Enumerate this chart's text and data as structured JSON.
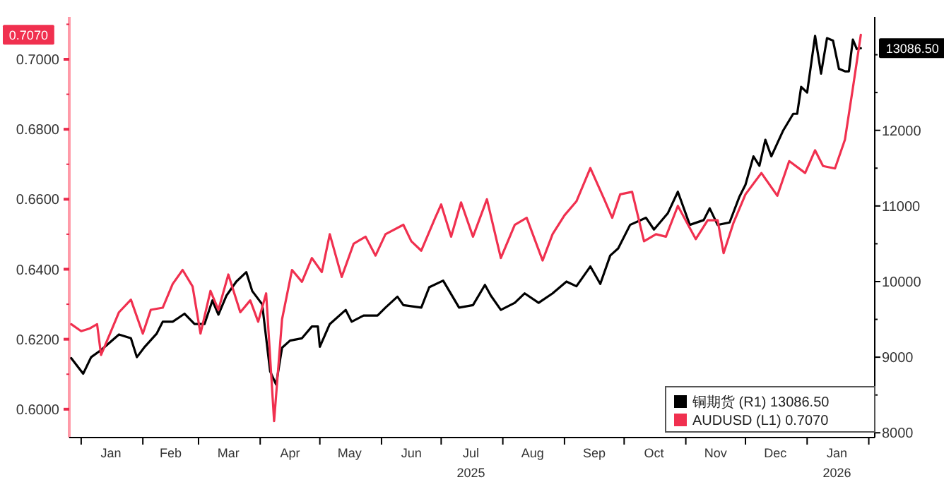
{
  "chart_data": {
    "type": "line",
    "xlim": [
      "2024-12-26",
      "2026-02-04"
    ],
    "ylim": [
      0.5919,
      0.7121
    ],
    "y2lim": [
      7937,
      13500
    ],
    "xticks": [
      {
        "value": "2025-01-01",
        "label": null
      },
      {
        "value": "2025-01-16",
        "label": "Jan"
      },
      {
        "value": "2025-02-01",
        "label": null
      },
      {
        "value": "2025-02-15",
        "label": "Feb"
      },
      {
        "value": "2025-03-01",
        "label": null
      },
      {
        "value": "2025-03-16",
        "label": "Mar"
      },
      {
        "value": "2025-04-01",
        "label": null
      },
      {
        "value": "2025-04-16",
        "label": "Apr"
      },
      {
        "value": "2025-05-01",
        "label": null
      },
      {
        "value": "2025-05-16",
        "label": "May"
      },
      {
        "value": "2025-06-01",
        "label": null
      },
      {
        "value": "2025-06-16",
        "label": "Jun"
      },
      {
        "value": "2025-07-01",
        "label": null
      },
      {
        "value": "2025-07-16",
        "label": "Jul\n2025"
      },
      {
        "value": "2025-08-01",
        "label": null
      },
      {
        "value": "2025-08-16",
        "label": "Aug"
      },
      {
        "value": "2025-09-01",
        "label": null
      },
      {
        "value": "2025-09-16",
        "label": "Sep"
      },
      {
        "value": "2025-10-01",
        "label": null
      },
      {
        "value": "2025-10-16",
        "label": "Oct"
      },
      {
        "value": "2025-11-01",
        "label": null
      },
      {
        "value": "2025-11-16",
        "label": "Nov"
      },
      {
        "value": "2025-12-01",
        "label": null
      },
      {
        "value": "2025-12-16",
        "label": "Dec"
      },
      {
        "value": "2026-01-01",
        "label": null
      },
      {
        "value": "2026-01-16",
        "label": "Jan\n2026"
      },
      {
        "value": "2026-02-01",
        "label": null
      }
    ],
    "yticks": [
      {
        "value": 0.6,
        "label": "0.6000"
      },
      {
        "value": 0.61,
        "label": null
      },
      {
        "value": 0.62,
        "label": "0.6200"
      },
      {
        "value": 0.63,
        "label": null
      },
      {
        "value": 0.64,
        "label": "0.6400"
      },
      {
        "value": 0.65,
        "label": null
      },
      {
        "value": 0.66,
        "label": "0.6600"
      },
      {
        "value": 0.67,
        "label": null
      },
      {
        "value": 0.68,
        "label": "0.6800"
      },
      {
        "value": 0.69,
        "label": null
      },
      {
        "value": 0.7,
        "label": "0.7000"
      },
      {
        "value": 0.71,
        "label": null
      }
    ],
    "y2ticks": [
      8000,
      {
        "value": 8500,
        "label": null
      },
      9000,
      {
        "value": 9500,
        "label": null
      },
      10000,
      {
        "value": 10500,
        "label": null
      },
      11000,
      {
        "value": 11500,
        "label": null
      },
      12000,
      {
        "value": 12500,
        "label": null
      },
      {
        "value": 13000,
        "label": null
      }
    ],
    "grid": false,
    "legend": "bottom right",
    "series": [
      {
        "name": "铜期货 (R1) 13086.50",
        "color": "#000000",
        "axis": "y2",
        "x": [
          "2024-12-27",
          "2025-01-02",
          "2025-01-06",
          "2025-01-11",
          "2025-01-20",
          "2025-01-26",
          "2025-01-29",
          "2025-02-02",
          "2025-02-08",
          "2025-02-11",
          "2025-02-16",
          "2025-02-22",
          "2025-02-27",
          "2025-03-04",
          "2025-03-08",
          "2025-03-11",
          "2025-03-15",
          "2025-03-20",
          "2025-03-25",
          "2025-03-28",
          "2025-04-02",
          "2025-04-06",
          "2025-04-09",
          "2025-04-12",
          "2025-04-16",
          "2025-04-22",
          "2025-04-27",
          "2025-04-30",
          "2025-05-01",
          "2025-05-06",
          "2025-05-14",
          "2025-05-17",
          "2025-05-23",
          "2025-05-30",
          "2025-06-03",
          "2025-06-09",
          "2025-06-12",
          "2025-06-21",
          "2025-06-25",
          "2025-07-02",
          "2025-07-10",
          "2025-07-17",
          "2025-07-23",
          "2025-07-26",
          "2025-07-31",
          "2025-08-07",
          "2025-08-12",
          "2025-08-19",
          "2025-08-26",
          "2025-09-02",
          "2025-09-07",
          "2025-09-14",
          "2025-09-19",
          "2025-09-24",
          "2025-09-28",
          "2025-10-04",
          "2025-10-12",
          "2025-10-16",
          "2025-10-23",
          "2025-10-28",
          "2025-11-03",
          "2025-11-10",
          "2025-11-13",
          "2025-11-17",
          "2025-11-23",
          "2025-11-28",
          "2025-12-01",
          "2025-12-05",
          "2025-12-08",
          "2025-12-11",
          "2025-12-14",
          "2025-12-20",
          "2025-12-25",
          "2025-12-27",
          "2025-12-29",
          "2026-01-01",
          "2026-01-05",
          "2026-01-08",
          "2026-01-11",
          "2026-01-14",
          "2026-01-17",
          "2026-01-20",
          "2026-01-22",
          "2026-01-24",
          "2026-01-26",
          "2026-01-28"
        ],
        "values": [
          8987,
          8781,
          9000,
          9094,
          9300,
          9250,
          9000,
          9138,
          9313,
          9469,
          9469,
          9575,
          9438,
          9438,
          9750,
          9563,
          9813,
          10000,
          10125,
          9875,
          9700,
          8813,
          8638,
          9125,
          9219,
          9250,
          9406,
          9406,
          9138,
          9438,
          9625,
          9469,
          9550,
          9550,
          9656,
          9800,
          9688,
          9656,
          9925,
          10013,
          9656,
          9688,
          9956,
          9813,
          9625,
          9719,
          9844,
          9719,
          9844,
          10000,
          9938,
          10200,
          9969,
          10344,
          10438,
          10750,
          10844,
          10688,
          10906,
          11188,
          10750,
          10813,
          10969,
          10750,
          10781,
          11125,
          11281,
          11656,
          11531,
          11875,
          11656,
          12000,
          12219,
          12219,
          12575,
          12500,
          13250,
          12750,
          13219,
          13188,
          12813,
          12781,
          12781,
          13200,
          13075,
          13086.5
        ]
      },
      {
        "name": "AUDUSD (L1) 0.7070",
        "color": "#f0304f",
        "x": [
          "2024-12-27",
          "2025-01-01",
          "2025-01-05",
          "2025-01-09",
          "2025-01-11",
          "2025-01-16",
          "2025-01-20",
          "2025-01-26",
          "2025-02-01",
          "2025-02-05",
          "2025-02-11",
          "2025-02-16",
          "2025-02-21",
          "2025-02-26",
          "2025-03-02",
          "2025-03-07",
          "2025-03-11",
          "2025-03-16",
          "2025-03-22",
          "2025-03-27",
          "2025-03-31",
          "2025-04-04",
          "2025-04-08",
          "2025-04-12",
          "2025-04-17",
          "2025-04-22",
          "2025-04-27",
          "2025-05-02",
          "2025-05-06",
          "2025-05-12",
          "2025-05-18",
          "2025-05-24",
          "2025-05-29",
          "2025-06-03",
          "2025-06-12",
          "2025-06-16",
          "2025-06-21",
          "2025-06-28",
          "2025-07-01",
          "2025-07-06",
          "2025-07-11",
          "2025-07-17",
          "2025-07-24",
          "2025-07-31",
          "2025-08-07",
          "2025-08-13",
          "2025-08-21",
          "2025-08-26",
          "2025-09-01",
          "2025-09-07",
          "2025-09-14",
          "2025-09-21",
          "2025-09-25",
          "2025-09-29",
          "2025-10-05",
          "2025-10-11",
          "2025-10-17",
          "2025-10-22",
          "2025-10-28",
          "2025-11-06",
          "2025-11-12",
          "2025-11-17",
          "2025-11-20",
          "2025-11-25",
          "2025-12-01",
          "2025-12-09",
          "2025-12-17",
          "2025-12-23",
          "2025-12-31",
          "2026-01-05",
          "2026-01-09",
          "2026-01-15",
          "2026-01-20",
          "2026-01-24",
          "2026-01-28"
        ],
        "values": [
          0.6243,
          0.6223,
          0.623,
          0.6243,
          0.6155,
          0.6223,
          0.6277,
          0.6313,
          0.6216,
          0.6284,
          0.629,
          0.6358,
          0.6398,
          0.6351,
          0.6216,
          0.6338,
          0.6284,
          0.6385,
          0.6277,
          0.6311,
          0.625,
          0.6331,
          0.5966,
          0.6257,
          0.6398,
          0.6364,
          0.6432,
          0.6392,
          0.65,
          0.6378,
          0.6473,
          0.6493,
          0.6439,
          0.65,
          0.6527,
          0.648,
          0.6453,
          0.6547,
          0.6585,
          0.6493,
          0.6591,
          0.6493,
          0.66,
          0.6432,
          0.6527,
          0.6547,
          0.6425,
          0.65,
          0.6554,
          0.6594,
          0.6689,
          0.66,
          0.6547,
          0.6614,
          0.6621,
          0.648,
          0.65,
          0.6493,
          0.6581,
          0.6486,
          0.654,
          0.654,
          0.6446,
          0.6533,
          0.6614,
          0.6675,
          0.661,
          0.6709,
          0.6675,
          0.674,
          0.6695,
          0.6688,
          0.677,
          0.6918,
          0.707
        ]
      }
    ],
    "annotations": [
      "13086.50",
      "0.7070"
    ]
  }
}
